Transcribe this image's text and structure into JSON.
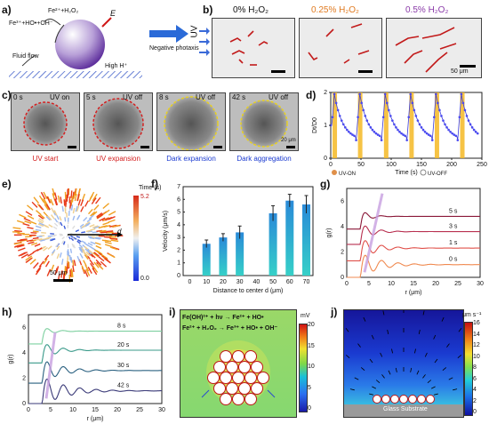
{
  "panels": {
    "a": {
      "label": "a)",
      "eq1": "Fe²⁺+H₂O₂",
      "eq2": "Fe³⁺+HO•+OH⁻",
      "E": "E",
      "arrow": "Negative photaxis",
      "flow": "Fluid flow",
      "highH": "High H⁺"
    },
    "b": {
      "label": "b)",
      "uv": "UV",
      "titles": [
        "0% H₂O₂",
        "0.25% H₂O₂",
        "0.5% H₂O₂"
      ],
      "title_colors": [
        "#222222",
        "#e07a20",
        "#8a3aa8"
      ],
      "scale": "50 μm"
    },
    "c": {
      "label": "c)",
      "times": [
        "0 s",
        "5 s",
        "8 s",
        "42 s"
      ],
      "states": [
        "UV on",
        "UV off",
        "UV off",
        "UV off"
      ],
      "captions": [
        "UV start",
        "UV expansion",
        "Dark expansion",
        "Dark aggregation"
      ],
      "caption_colors": [
        "#d42020",
        "#d42020",
        "#1a3ad0",
        "#1a3ad0"
      ],
      "scale": "20 μm"
    },
    "d": {
      "label": "d)",
      "ylabel": "Dt/D0",
      "xlabel": "Time (s)",
      "legend_on": "UV-ON",
      "legend_off": "UV-OFF"
    },
    "e": {
      "label": "e)",
      "cb_title": "Time (s)",
      "cb_max": "5.2",
      "cb_min": "0.0",
      "d": "d",
      "scale": "50 μm"
    },
    "f": {
      "label": "f)",
      "ylabel": "Velocity (μm/s)",
      "xlabel": "Distance to center d (μm)"
    },
    "g": {
      "label": "g)",
      "ylabel": "g(r)",
      "xlabel": "r (μm)",
      "curve_labels": [
        "5 s",
        "3 s",
        "1 s",
        "0 s"
      ]
    },
    "h": {
      "label": "h)",
      "ylabel": "g(r)",
      "xlabel": "r (μm)",
      "curve_labels": [
        "8 s",
        "20 s",
        "30 s",
        "42 s"
      ]
    },
    "i": {
      "label": "i)",
      "eq1": "Fe(OH)²⁺ + hν → Fe²⁺ + HO•",
      "eq2": "Fe²⁺ + H₂O₂ → Fe³⁺ + HO• + OH⁻",
      "unit": "mV",
      "ticks": [
        "20",
        "15",
        "10",
        "5",
        "0"
      ]
    },
    "j": {
      "label": "j)",
      "unit": "μm s⁻¹",
      "ticks": [
        "16",
        "14",
        "12",
        "10",
        "8",
        "6",
        "4",
        "2",
        "0"
      ],
      "substrate": "Glass Substrate"
    }
  },
  "chart_data": [
    {
      "id": "d",
      "type": "line",
      "xlabel": "Time (s)",
      "ylabel": "Dt/D0",
      "xlim": [
        0,
        250
      ],
      "ylim": [
        0,
        2
      ],
      "xticks": [
        0,
        50,
        100,
        150,
        200,
        250
      ],
      "yticks": [
        0,
        1,
        2
      ],
      "uv_on_times": [
        3,
        45,
        88,
        130,
        172,
        214
      ],
      "cycle_period": 42,
      "peak": 1.95,
      "trough": 0.55
    },
    {
      "id": "f",
      "type": "bar",
      "xlabel": "Distance to center d (μm)",
      "ylabel": "Velocity (μm/s)",
      "categories": [
        10,
        20,
        30,
        50,
        60,
        70
      ],
      "values": [
        2.5,
        3.0,
        3.4,
        4.9,
        5.9,
        5.6
      ],
      "errors": [
        0.3,
        0.3,
        0.5,
        0.6,
        0.5,
        0.7
      ],
      "xlim": [
        0,
        70
      ],
      "ylim": [
        0,
        7
      ],
      "xticks": [
        0,
        10,
        20,
        30,
        40,
        50,
        60,
        70
      ],
      "yticks": [
        0,
        1,
        2,
        3,
        4,
        5,
        6,
        7
      ]
    },
    {
      "id": "g",
      "type": "line",
      "xlabel": "r (μm)",
      "ylabel": "g(r)",
      "xlim": [
        0,
        30
      ],
      "ylim": [
        0,
        7
      ],
      "xticks": [
        0,
        5,
        10,
        15,
        20,
        25,
        30
      ],
      "yticks": [
        0,
        2,
        4,
        6
      ],
      "series": [
        {
          "name": "5 s",
          "offset": 4.8,
          "color": "#8a1838"
        },
        {
          "name": "3 s",
          "offset": 3.6,
          "color": "#b83050"
        },
        {
          "name": "1 s",
          "offset": 2.3,
          "color": "#e0504a"
        },
        {
          "name": "0 s",
          "offset": 1.0,
          "color": "#f08a50"
        }
      ]
    },
    {
      "id": "h",
      "type": "line",
      "xlabel": "r (μm)",
      "ylabel": "g(r)",
      "xlim": [
        0,
        30
      ],
      "ylim": [
        0,
        7
      ],
      "xticks": [
        0,
        5,
        10,
        15,
        20,
        25,
        30
      ],
      "yticks": [
        0,
        2,
        4,
        6
      ],
      "series": [
        {
          "name": "8 s",
          "offset": 5.7,
          "color": "#7ed0a0"
        },
        {
          "name": "20 s",
          "offset": 4.2,
          "color": "#3a9a8a"
        },
        {
          "name": "30 s",
          "offset": 2.6,
          "color": "#2a6080"
        },
        {
          "name": "42 s",
          "offset": 1.0,
          "color": "#3a3a78"
        }
      ]
    }
  ]
}
